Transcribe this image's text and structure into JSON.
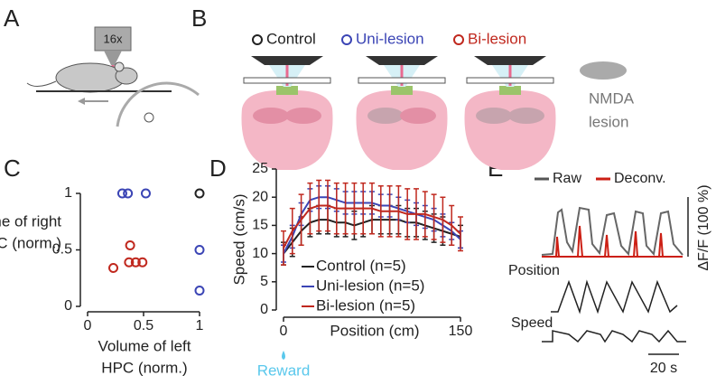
{
  "panel_labels": [
    "A",
    "B",
    "C",
    "D",
    "E"
  ],
  "panel_a": {
    "objective": "16x"
  },
  "panel_b": {
    "legend": [
      {
        "name": "Control",
        "color": "#222222"
      },
      {
        "name": "Uni-lesion",
        "color": "#3b45b5"
      },
      {
        "name": "Bi-lesion",
        "color": "#c0281e"
      }
    ],
    "lesion_label": [
      "NMDA",
      "lesion"
    ]
  },
  "panel_e": {
    "legend": [
      {
        "name": "Raw",
        "color": "#555555"
      },
      {
        "name": "Deconv.",
        "color": "#cc1f14"
      }
    ],
    "y_scale": "ΔF/F (100 %)",
    "position_label": "Position",
    "speed_label": "Speed",
    "x_scale": "20 s"
  },
  "chart_data": [
    {
      "type": "scatter",
      "xlabel": [
        "Volume of left",
        "HPC (norm.)"
      ],
      "ylabel": [
        "Volume of right",
        "HPC (norm.)"
      ],
      "xlim": [
        0,
        1
      ],
      "ylim": [
        0,
        1
      ],
      "xticks": [
        0,
        0.5,
        1
      ],
      "yticks": [
        0,
        0.5,
        1
      ],
      "series": [
        {
          "color": "#222222",
          "x": [
            1
          ],
          "values": [
            1
          ]
        },
        {
          "color": "#3b45b5",
          "x": [
            0.31,
            0.36,
            0.52,
            1,
            1
          ],
          "values": [
            1,
            1,
            1,
            0.5,
            0.14
          ]
        },
        {
          "color": "#c0281e",
          "x": [
            0.23,
            0.37,
            0.43,
            0.49,
            0.38
          ],
          "values": [
            0.34,
            0.39,
            0.39,
            0.39,
            0.54
          ]
        }
      ]
    },
    {
      "type": "line",
      "xlabel": "Position (cm)",
      "ylabel": "Speed (cm/s)",
      "annotation": "Reward",
      "xlim": [
        0,
        150
      ],
      "ylim": [
        0,
        25
      ],
      "xticks": [
        0,
        150
      ],
      "yticks": [
        0,
        5,
        10,
        15,
        20,
        25
      ],
      "x": [
        0,
        7.5,
        15,
        22.5,
        30,
        37.5,
        45,
        52.5,
        60,
        67.5,
        75,
        82.5,
        90,
        97.5,
        105,
        112.5,
        120,
        127.5,
        135,
        142.5,
        150
      ],
      "series": [
        {
          "name": "Control (n=5)",
          "color": "#222222",
          "values": [
            10,
            12,
            14,
            15.5,
            16,
            16,
            15.5,
            15.5,
            15,
            15.5,
            16,
            16,
            16,
            16,
            15.5,
            15.5,
            15,
            14.5,
            14,
            13.5,
            13
          ],
          "errors": [
            2,
            2.5,
            2.5,
            2.5,
            2.5,
            2.5,
            2.5,
            2.5,
            2.5,
            2.5,
            2.5,
            2.5,
            2.5,
            2.5,
            2.5,
            2.5,
            2.5,
            2.5,
            2.5,
            2,
            2
          ]
        },
        {
          "name": "Uni-lesion (n=5)",
          "color": "#3b45b5",
          "values": [
            10,
            13,
            17,
            19.5,
            20,
            20,
            19.5,
            19,
            19,
            19,
            19,
            18.5,
            18.5,
            18,
            17.5,
            17,
            16.5,
            16,
            15,
            14,
            12.5
          ],
          "errors": [
            1.5,
            2,
            2,
            2,
            2,
            2,
            2,
            2,
            2,
            2,
            2,
            2,
            2,
            2,
            2,
            2,
            2,
            2,
            2,
            1.5,
            1.5
          ]
        },
        {
          "name": "Bi-lesion (n=5)",
          "color": "#c0281e",
          "values": [
            11,
            14,
            16,
            18,
            18.5,
            18.5,
            18,
            18,
            18,
            18,
            18,
            17.5,
            17.5,
            17.5,
            17,
            17,
            17,
            16.5,
            16,
            15,
            13.5
          ],
          "errors": [
            3,
            4,
            4.5,
            4.5,
            4.5,
            4.5,
            4.5,
            4.5,
            4.5,
            4.5,
            4.5,
            4.5,
            4.5,
            4.5,
            4.5,
            4.5,
            4,
            4,
            4,
            3.5,
            3
          ]
        }
      ]
    }
  ]
}
